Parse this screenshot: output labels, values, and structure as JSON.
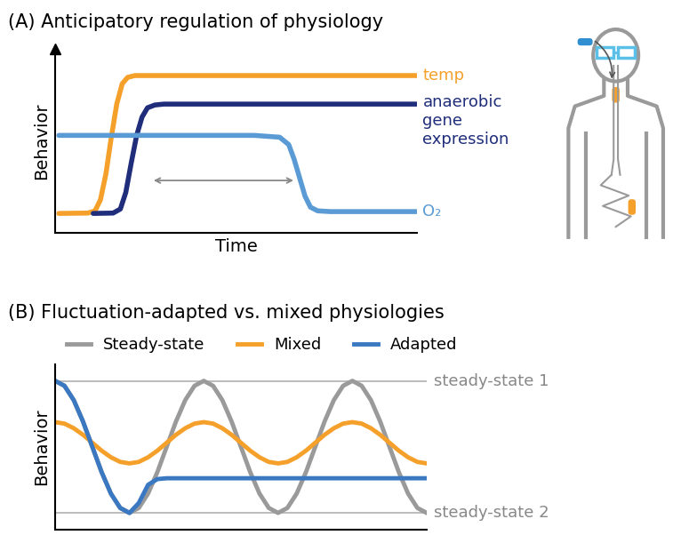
{
  "chart_data": [
    {
      "type": "line",
      "title": "(A) Anticipatory regulation of physiology",
      "x_label": "Time",
      "y_label": "Behavior",
      "xlim": [
        0,
        10
      ],
      "ylim": [
        0,
        10
      ],
      "tick_labels": false,
      "series": [
        {
          "name": "temp",
          "color": "#f5a02a",
          "x": [
            0.1,
            0.9,
            1.1,
            1.25,
            1.4,
            1.55,
            1.7,
            1.85,
            2.0,
            2.2,
            10
          ],
          "values": [
            1.06,
            1.08,
            1.2,
            1.8,
            3.2,
            5.2,
            7.0,
            8.1,
            8.45,
            8.55,
            8.55
          ]
        },
        {
          "name": "anaerobic\ngene\nexpression",
          "color": "#1f2d7a",
          "x": [
            1.05,
            1.6,
            1.8,
            1.95,
            2.1,
            2.25,
            2.4,
            2.55,
            2.75,
            3.0,
            10
          ],
          "values": [
            1.06,
            1.08,
            1.3,
            2.2,
            3.8,
            5.3,
            6.3,
            6.8,
            6.95,
            7.0,
            7.0
          ]
        },
        {
          "name": "O₂",
          "color": "#5b9bd5",
          "x": [
            0.1,
            5.5,
            6.2,
            6.45,
            6.6,
            6.75,
            6.9,
            7.05,
            7.25,
            7.6,
            10
          ],
          "values": [
            5.3,
            5.3,
            5.2,
            4.8,
            4.0,
            3.0,
            2.0,
            1.4,
            1.2,
            1.16,
            1.16
          ]
        }
      ]
    },
    {
      "type": "line",
      "title": "(B) Fluctuation-adapted vs. mixed physiologies",
      "y_label": "Behavior",
      "xlim": [
        0,
        10
      ],
      "ylim": [
        0,
        10
      ],
      "tick_labels": false,
      "legend": "top",
      "reference_lines": [
        {
          "name": "steady-state 1",
          "value": 9
        },
        {
          "name": "steady-state 2",
          "value": 1
        }
      ],
      "series": [
        {
          "name": "Steady-state",
          "color": "#9a9a9a",
          "x": [
            0,
            0.25,
            0.5,
            0.75,
            1,
            1.25,
            1.5,
            1.75,
            2,
            2.25,
            2.5,
            2.75,
            3,
            3.25,
            3.5,
            3.75,
            4,
            4.25,
            4.5,
            4.75,
            5,
            5.25,
            5.5,
            5.75,
            6,
            6.25,
            6.5,
            6.75,
            7,
            7.25,
            7.5,
            7.75,
            8,
            8.25,
            8.5,
            8.75,
            9,
            9.25,
            9.5,
            9.75,
            10
          ],
          "values": [
            9,
            8.7,
            7.83,
            6.53,
            5,
            3.47,
            2.17,
            1.3,
            1,
            1.3,
            2.17,
            3.47,
            5,
            6.53,
            7.83,
            8.7,
            9,
            8.7,
            7.83,
            6.53,
            5,
            3.47,
            2.17,
            1.3,
            1,
            1.3,
            2.17,
            3.47,
            5,
            6.53,
            7.83,
            8.7,
            9,
            8.7,
            7.83,
            6.53,
            5,
            3.47,
            2.17,
            1.3,
            1
          ]
        },
        {
          "name": "Mixed",
          "color": "#f5a02a",
          "x": [
            0,
            0.25,
            0.5,
            0.75,
            1,
            1.25,
            1.5,
            1.75,
            2,
            2.25,
            2.5,
            2.75,
            3,
            3.25,
            3.5,
            3.75,
            4,
            4.25,
            4.5,
            4.75,
            5,
            5.25,
            5.5,
            5.75,
            6,
            6.25,
            6.5,
            6.75,
            7,
            7.25,
            7.5,
            7.75,
            8,
            8.25,
            8.5,
            8.75,
            9,
            9.25,
            9.5,
            9.75,
            10
          ],
          "values": [
            6.5,
            6.41,
            6.13,
            5.73,
            5.25,
            4.77,
            4.37,
            4.09,
            4,
            4.09,
            4.37,
            4.77,
            5.25,
            5.73,
            6.13,
            6.41,
            6.5,
            6.41,
            6.13,
            5.73,
            5.25,
            4.77,
            4.37,
            4.09,
            4,
            4.09,
            4.37,
            4.77,
            5.25,
            5.73,
            6.13,
            6.41,
            6.5,
            6.41,
            6.13,
            5.73,
            5.25,
            4.77,
            4.37,
            4.09,
            4
          ]
        },
        {
          "name": "Adapted",
          "color": "#3a78c2",
          "x": [
            0,
            0.25,
            0.5,
            0.75,
            1,
            1.25,
            1.5,
            1.75,
            2,
            2.25,
            2.5,
            2.75,
            3,
            10
          ],
          "values": [
            9,
            8.7,
            7.83,
            6.53,
            5,
            3.47,
            2.17,
            1.3,
            1,
            1.6,
            2.7,
            3.05,
            3.1,
            3.1
          ]
        }
      ]
    }
  ]
}
